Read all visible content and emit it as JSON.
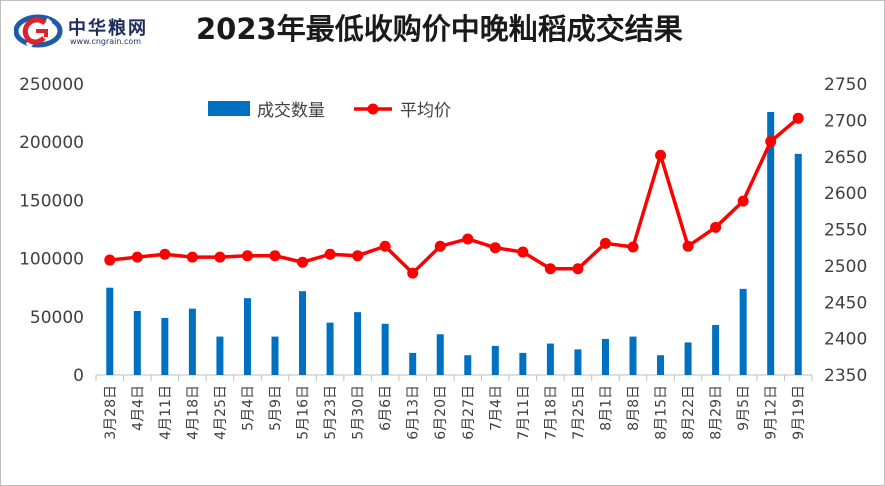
{
  "logo": {
    "name": "中华粮网",
    "url": "www.cngrain.com"
  },
  "chart_data": {
    "type": "bar+line",
    "title": "2023年最低收购价中晚籼稻成交结果",
    "categories": [
      "3月28日",
      "4月4日",
      "4月11日",
      "4月18日",
      "4月25日",
      "5月4日",
      "5月9日",
      "5月16日",
      "5月23日",
      "5月30日",
      "6月6日",
      "6月13日",
      "6月20日",
      "6月27日",
      "7月4日",
      "7月11日",
      "7月18日",
      "7月25日",
      "8月1日",
      "8月8日",
      "8月15日",
      "8月22日",
      "8月29日",
      "9月5日",
      "9月12日",
      "9月19日"
    ],
    "series": [
      {
        "name": "成交数量",
        "type": "bar",
        "axis": "left",
        "color": "#0070c0",
        "values": [
          75000,
          55000,
          49000,
          57000,
          33000,
          66000,
          33000,
          72000,
          45000,
          54000,
          44000,
          19000,
          35000,
          17000,
          25000,
          19000,
          27000,
          22000,
          31000,
          33000,
          17000,
          28000,
          43000,
          74000,
          226000,
          190000
        ]
      },
      {
        "name": "平均价",
        "type": "line",
        "axis": "right",
        "color": "#ff0000",
        "values": [
          2508,
          2512,
          2516,
          2512,
          2512,
          2514,
          2514,
          2505,
          2516,
          2514,
          2527,
          2490,
          2527,
          2537,
          2525,
          2519,
          2496,
          2496,
          2531,
          2526,
          2652,
          2527,
          2553,
          2589,
          2671,
          2703
        ]
      }
    ],
    "y_left": {
      "min": 0,
      "max": 250000,
      "ticks": [
        "0",
        "50000",
        "100000",
        "150000",
        "200000",
        "250000"
      ]
    },
    "y_right": {
      "min": 2350,
      "max": 2750,
      "ticks": [
        "2350",
        "2400",
        "2450",
        "2500",
        "2550",
        "2600",
        "2650",
        "2700",
        "2750"
      ]
    },
    "legend_position": "top-left",
    "grid": false
  }
}
